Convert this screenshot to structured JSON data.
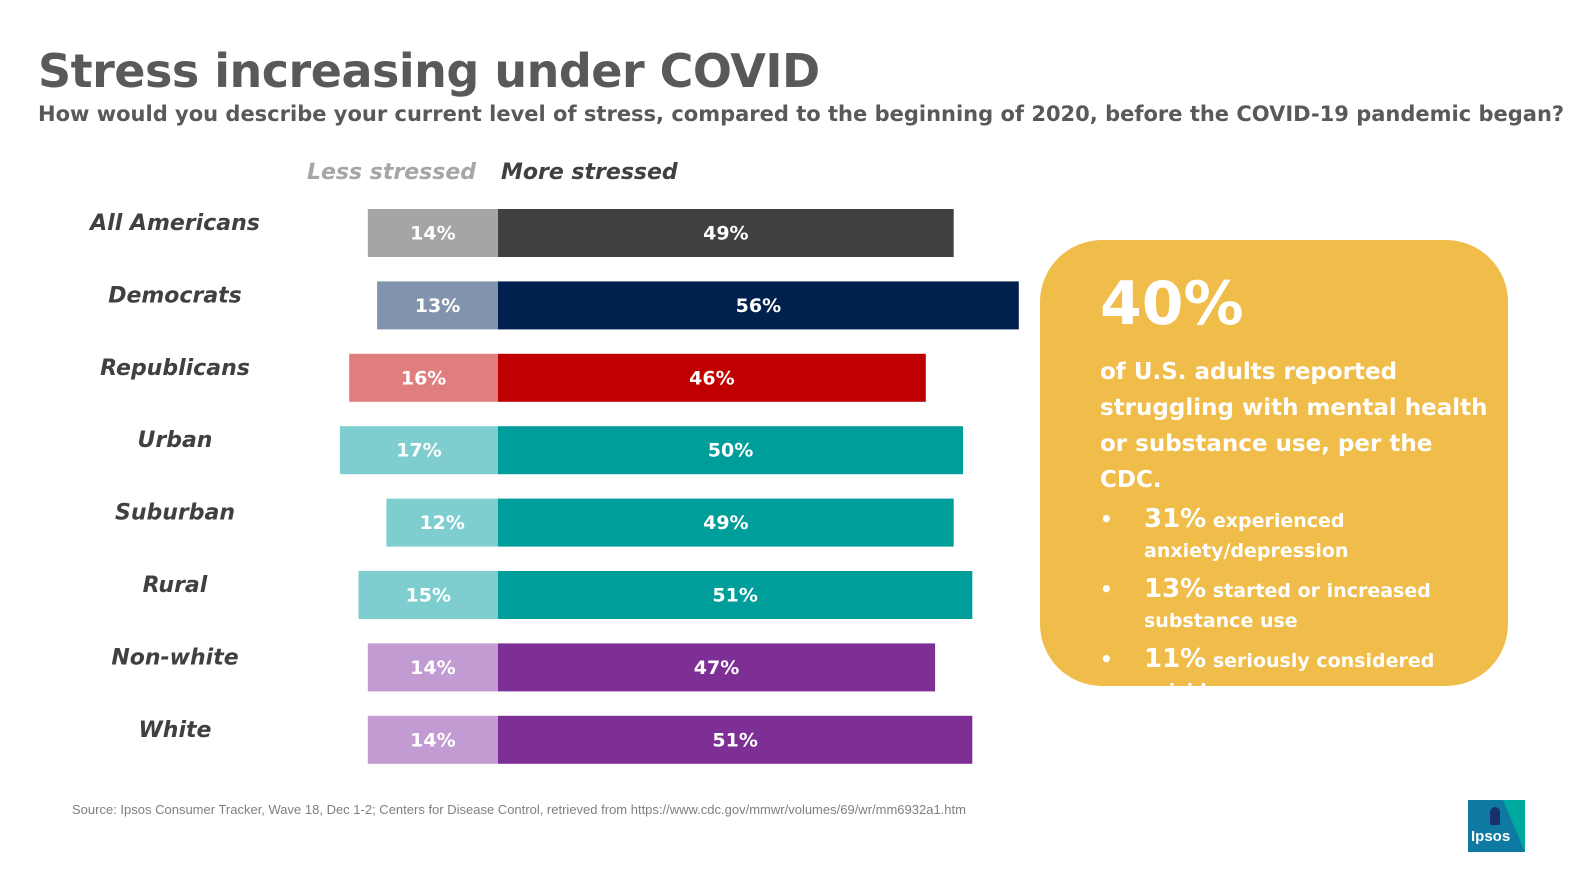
{
  "title": "Stress increasing under COVID",
  "subtitle": "How would you describe your current level of stress, compared to the beginning of 2020, before the COVID-19 pandemic began?",
  "headers": {
    "less": "Less stressed",
    "more": "More stressed"
  },
  "chart_data": {
    "type": "bar",
    "orientation": "horizontal-diverging",
    "categories": [
      "All Americans",
      "Democrats",
      "Republicans",
      "Urban",
      "Suburban",
      "Rural",
      "Non-white",
      "White"
    ],
    "series": [
      {
        "name": "Less stressed",
        "values": [
          14,
          13,
          16,
          17,
          12,
          15,
          14,
          14
        ],
        "labels": [
          "14%",
          "13%",
          "16%",
          "17%",
          "12%",
          "15%",
          "14%",
          "14%"
        ]
      },
      {
        "name": "More stressed",
        "values": [
          49,
          56,
          46,
          50,
          49,
          51,
          47,
          51
        ],
        "labels": [
          "49%",
          "56%",
          "46%",
          "50%",
          "49%",
          "51%",
          "47%",
          "51%"
        ]
      }
    ],
    "colors": {
      "less": [
        "#a5a5a5",
        "#8094ad",
        "#e07d7f",
        "#7ecdcf",
        "#7ecdcf",
        "#7ecdcf",
        "#c39bd3",
        "#c39bd3"
      ],
      "more": [
        "#404040",
        "#00214d",
        "#c00000",
        "#009e9a",
        "#009e9a",
        "#009e9a",
        "#7d2f95",
        "#7d2f95"
      ]
    },
    "unit": "%"
  },
  "callout": {
    "big_stat": "40%",
    "text": "of U.S. adults reported struggling with mental health or substance use, per the CDC.",
    "bullets": [
      {
        "pct": "31%",
        "text": "experienced anxiety/depression"
      },
      {
        "pct": "13%",
        "text": "started or increased substance use"
      },
      {
        "pct": "11%",
        "text": "seriously considered suicide"
      }
    ],
    "bullet_symbol": "•"
  },
  "source": "Source: Ipsos Consumer Tracker, Wave 18, Dec 1-2; Centers for Disease Control, retrieved from https://www.cdc.gov/mmwr/volumes/69/wr/mm6932a1.htm",
  "logo_text": "Ipsos",
  "colors": {
    "callout_bg": "#f0bc4a",
    "title": "#595959"
  }
}
